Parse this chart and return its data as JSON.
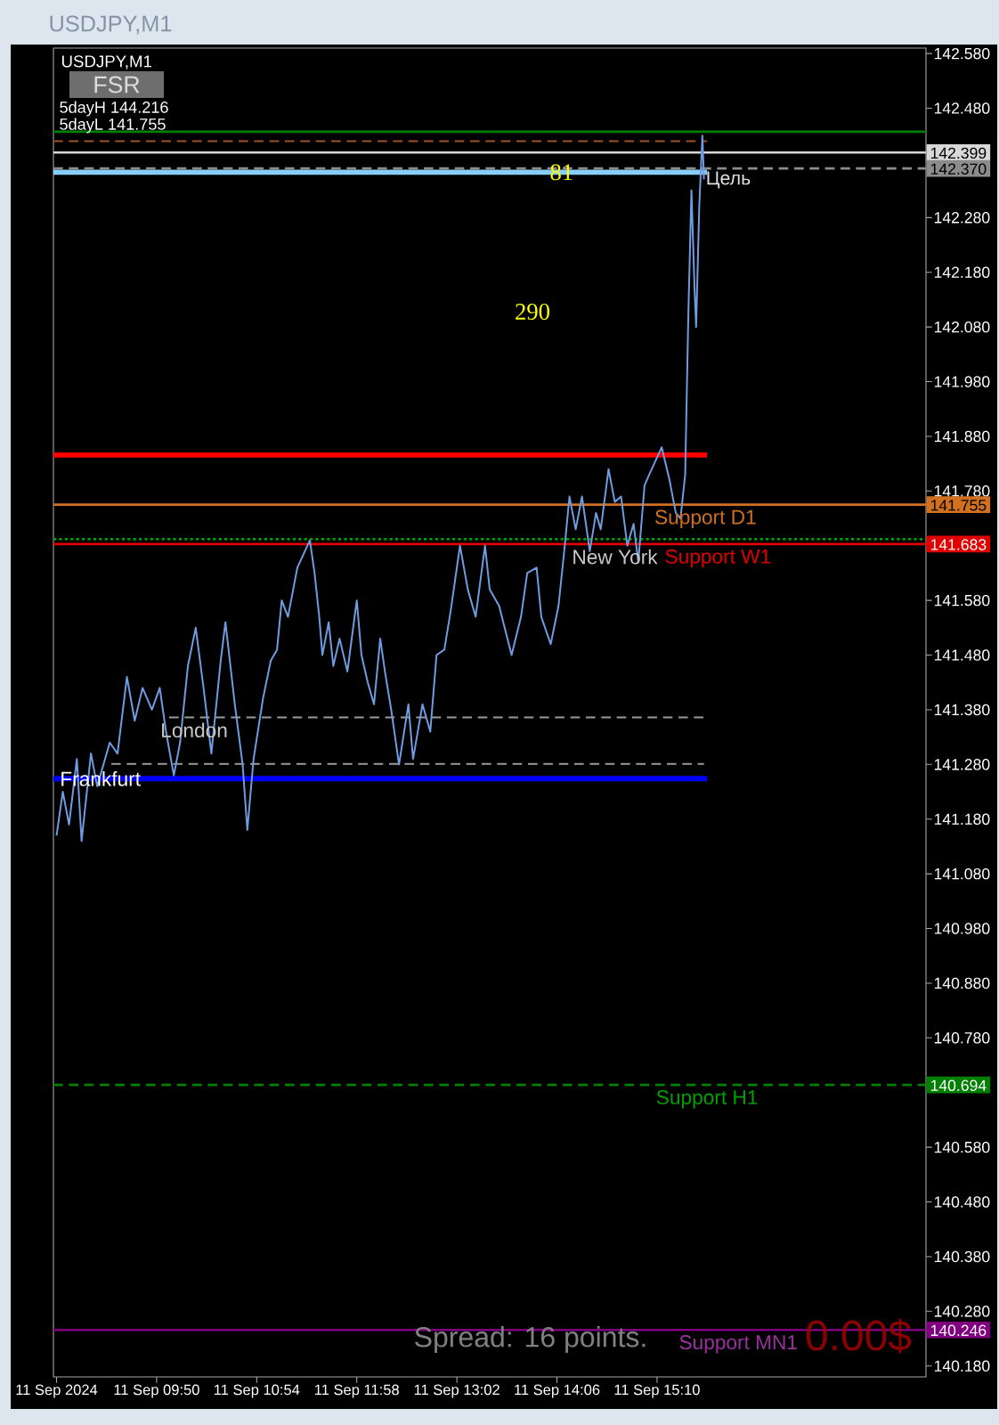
{
  "chart_data": {
    "type": "line",
    "title": "USDJPY,M1",
    "subtitle": "USDJPY,M1",
    "xlim": [
      "2024-09-11T08:44",
      "2024-09-11T18:02"
    ],
    "ylim": [
      140.16,
      142.59
    ],
    "xticks": [
      {
        "value": "2024-09-11T08:46",
        "label": "11 Sep 2024"
      },
      {
        "value": "2024-09-11T09:50",
        "label": "11 Sep 09:50"
      },
      {
        "value": "2024-09-11T10:54",
        "label": "11 Sep 10:54"
      },
      {
        "value": "2024-09-11T11:58",
        "label": "11 Sep 11:58"
      },
      {
        "value": "2024-09-11T13:02",
        "label": "11 Sep 13:02"
      },
      {
        "value": "2024-09-11T14:06",
        "label": "11 Sep 14:06"
      },
      {
        "value": "2024-09-11T15:10",
        "label": "11 Sep 15:10"
      }
    ],
    "yticks": [
      {
        "value": 142.58,
        "label": "142.580"
      },
      {
        "value": 142.48,
        "label": "142.480"
      },
      {
        "value": 142.28,
        "label": "142.280"
      },
      {
        "value": 142.18,
        "label": "142.180"
      },
      {
        "value": 142.08,
        "label": "142.080"
      },
      {
        "value": 141.98,
        "label": "141.980"
      },
      {
        "value": 141.88,
        "label": "141.880"
      },
      {
        "value": 141.78,
        "label": "141.780"
      },
      {
        "value": 141.58,
        "label": "141.580"
      },
      {
        "value": 141.48,
        "label": "141.480"
      },
      {
        "value": 141.38,
        "label": "141.380"
      },
      {
        "value": 141.28,
        "label": "141.280"
      },
      {
        "value": 141.18,
        "label": "141.180"
      },
      {
        "value": 141.08,
        "label": "141.080"
      },
      {
        "value": 140.98,
        "label": "140.980"
      },
      {
        "value": 140.88,
        "label": "140.880"
      },
      {
        "value": 140.78,
        "label": "140.780"
      },
      {
        "value": 140.58,
        "label": "140.580"
      },
      {
        "value": 140.48,
        "label": "140.480"
      },
      {
        "value": 140.38,
        "label": "140.380"
      },
      {
        "value": 140.28,
        "label": "140.280"
      },
      {
        "value": 140.18,
        "label": "140.180"
      }
    ],
    "series": [
      {
        "x": [
          "2024-09-11T08:44",
          "2024-09-11T15:42"
        ],
        "values": [
          142.42,
          142.42
        ],
        "color": "#a0522d",
        "line_style": "dashed"
      },
      {
        "x": [
          "2024-09-11T08:44",
          "2024-09-11T15:42"
        ],
        "values": [
          142.363,
          142.363
        ],
        "color": "#87cefa"
      },
      {
        "x": [
          "2024-09-11T08:44",
          "2024-09-11T15:42"
        ],
        "values": [
          141.846,
          141.846
        ],
        "color": "#ff0000"
      },
      {
        "x": [
          "2024-09-11T09:58",
          "2024-09-11T15:40"
        ],
        "values": [
          141.366,
          141.366
        ],
        "color": "#9a9a9a",
        "line_style": "dashed"
      },
      {
        "x": [
          "2024-09-11T09:21",
          "2024-09-11T15:40"
        ],
        "values": [
          141.281,
          141.281
        ],
        "color": "#9a9a9a",
        "line_style": "dashed"
      },
      {
        "x": [
          "2024-09-11T08:44",
          "2024-09-11T15:42"
        ],
        "values": [
          141.254,
          141.254
        ],
        "color": "#0000ff"
      },
      {
        "x": [
          "2024-09-11T08:46",
          "2024-09-11T08:50",
          "2024-09-11T08:54",
          "2024-09-11T08:59",
          "2024-09-11T09:02",
          "2024-09-11T09:08",
          "2024-09-11T09:12",
          "2024-09-11T09:20",
          "2024-09-11T09:25",
          "2024-09-11T09:31",
          "2024-09-11T09:36",
          "2024-09-11T09:41",
          "2024-09-11T09:47",
          "2024-09-11T09:52",
          "2024-09-11T09:56",
          "2024-09-11T10:01",
          "2024-09-11T10:05",
          "2024-09-11T10:10",
          "2024-09-11T10:15",
          "2024-09-11T10:20",
          "2024-09-11T10:25",
          "2024-09-11T10:31",
          "2024-09-11T10:34",
          "2024-09-11T10:40",
          "2024-09-11T10:45",
          "2024-09-11T10:48",
          "2024-09-11T10:52",
          "2024-09-11T10:58",
          "2024-09-11T11:03",
          "2024-09-11T11:07",
          "2024-09-11T11:10",
          "2024-09-11T11:14",
          "2024-09-11T11:20",
          "2024-09-11T11:28",
          "2024-09-11T11:31",
          "2024-09-11T11:34",
          "2024-09-11T11:36",
          "2024-09-11T11:40",
          "2024-09-11T11:43",
          "2024-09-11T11:47",
          "2024-09-11T11:52",
          "2024-09-11T11:58",
          "2024-09-11T12:01",
          "2024-09-11T12:05",
          "2024-09-11T12:09",
          "2024-09-11T12:13",
          "2024-09-11T12:16",
          "2024-09-11T12:20",
          "2024-09-11T12:25",
          "2024-09-11T12:31",
          "2024-09-11T12:34",
          "2024-09-11T12:40",
          "2024-09-11T12:45",
          "2024-09-11T12:49",
          "2024-09-11T12:54",
          "2024-09-11T12:58",
          "2024-09-11T13:04",
          "2024-09-11T13:09",
          "2024-09-11T13:14",
          "2024-09-11T13:20",
          "2024-09-11T13:23",
          "2024-09-11T13:29",
          "2024-09-11T13:37",
          "2024-09-11T13:43",
          "2024-09-11T13:47",
          "2024-09-11T13:53",
          "2024-09-11T13:56",
          "2024-09-11T14:02",
          "2024-09-11T14:07",
          "2024-09-11T14:11",
          "2024-09-11T14:14",
          "2024-09-11T14:18",
          "2024-09-11T14:22",
          "2024-09-11T14:27",
          "2024-09-11T14:31",
          "2024-09-11T14:34",
          "2024-09-11T14:39",
          "2024-09-11T14:43",
          "2024-09-11T14:47",
          "2024-09-11T14:51",
          "2024-09-11T14:55",
          "2024-09-11T14:58",
          "2024-09-11T15:02",
          "2024-09-11T15:05",
          "2024-09-11T15:13",
          "2024-09-11T15:18",
          "2024-09-11T15:22",
          "2024-09-11T15:25",
          "2024-09-11T15:28",
          "2024-09-11T15:30",
          "2024-09-11T15:32",
          "2024-09-11T15:34",
          "2024-09-11T15:35",
          "2024-09-11T15:37",
          "2024-09-11T15:39",
          "2024-09-11T15:40"
        ],
        "values": [
          141.15,
          141.23,
          141.17,
          141.29,
          141.14,
          141.3,
          141.24,
          141.32,
          141.3,
          141.44,
          141.36,
          141.42,
          141.38,
          141.42,
          141.34,
          141.26,
          141.32,
          141.46,
          141.53,
          141.42,
          141.3,
          141.47,
          141.54,
          141.39,
          141.28,
          141.16,
          141.29,
          141.4,
          141.47,
          141.49,
          141.58,
          141.55,
          141.64,
          141.69,
          141.63,
          141.55,
          141.48,
          141.54,
          141.46,
          141.51,
          141.45,
          141.58,
          141.48,
          141.43,
          141.39,
          141.51,
          141.45,
          141.38,
          141.28,
          141.39,
          141.29,
          141.39,
          141.34,
          141.48,
          141.49,
          141.56,
          141.68,
          141.6,
          141.55,
          141.68,
          141.6,
          141.57,
          141.48,
          141.55,
          141.63,
          141.64,
          141.55,
          141.5,
          141.57,
          141.68,
          141.77,
          141.71,
          141.77,
          141.67,
          141.74,
          141.71,
          141.82,
          141.76,
          141.77,
          141.68,
          141.72,
          141.65,
          141.79,
          141.81,
          141.86,
          141.8,
          141.74,
          141.73,
          141.81,
          142.1,
          142.33,
          142.15,
          142.08,
          142.3,
          142.43,
          142.35
        ],
        "color": "#6f9be0"
      }
    ],
    "ref_lines": [
      {
        "axis": "y",
        "value": 142.437,
        "color": "#008000"
      },
      {
        "axis": "y",
        "value": 142.399,
        "label": "142.399",
        "color": "#d8d8d8"
      },
      {
        "axis": "y",
        "value": 142.37,
        "label": "142.370",
        "color": "#8c8c8c",
        "line_style": "dashed"
      },
      {
        "axis": "y",
        "value": 141.755,
        "label": "141.755",
        "color": "#d07020"
      },
      {
        "axis": "y",
        "value": 141.692,
        "color": "#00a000",
        "line_style": "dotted"
      },
      {
        "axis": "y",
        "value": 141.683,
        "label": "141.683",
        "color": "#e00000"
      },
      {
        "axis": "y",
        "value": 140.694,
        "label": "140.694",
        "color": "#008000",
        "line_style": "dashed"
      },
      {
        "axis": "y",
        "value": 140.246,
        "label": "140.246",
        "color": "#800080"
      }
    ],
    "annotations": [
      "FSR",
      "5dayH 144.216",
      "5dayL 141.755",
      "290",
      "Цель",
      {
        "text": "81",
        "x": "2024-09-11T14:09",
        "y": 142.363
      },
      {
        "text": "Support D1",
        "x": "2024-09-11T15:41",
        "y": 141.755
      },
      {
        "text": "New York",
        "x": "2024-09-11T14:43",
        "y": 141.683
      },
      {
        "text": "Support W1",
        "x": "2024-09-11T15:49",
        "y": 141.683
      },
      {
        "text": "London",
        "x": "2024-09-11T10:14",
        "y": 141.366
      },
      {
        "text": "Frankfurt",
        "x": "2024-09-11T09:14",
        "y": 141.254
      },
      {
        "text": "Support H1",
        "x": "2024-09-11T15:42",
        "y": 140.694
      },
      {
        "text": "Support MN1",
        "x": "2024-09-11T16:02",
        "y": 140.246
      },
      "Spread: 16 points.",
      "0.00$"
    ]
  }
}
